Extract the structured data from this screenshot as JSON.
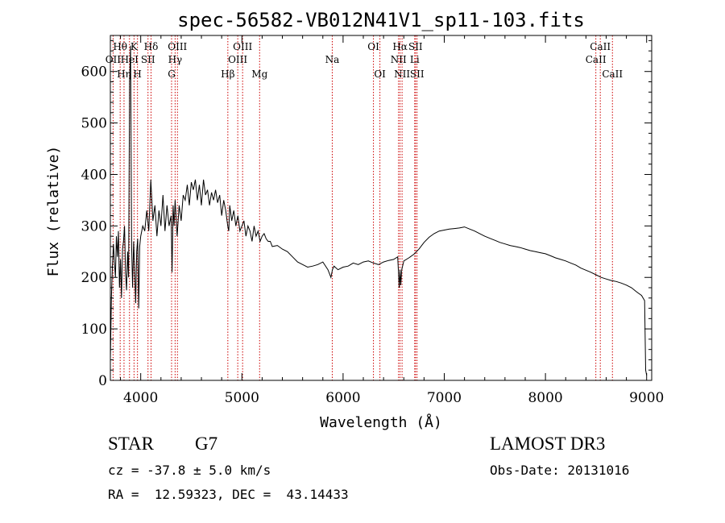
{
  "chart_data": {
    "type": "line",
    "title": "spec-56582-VB012N41V1_sp11-103.fits",
    "xlabel": "Wavelength (Å)",
    "ylabel": "Flux (relative)",
    "xlim": [
      3700,
      9050
    ],
    "ylim": [
      0,
      670
    ],
    "xticks": [
      4000,
      5000,
      6000,
      7000,
      8000,
      9000
    ],
    "yticks": [
      0,
      100,
      200,
      300,
      400,
      500,
      600
    ],
    "grid": false,
    "line_color": "#000000",
    "marker_color": "#cc0000",
    "series": [
      {
        "name": "flux",
        "x": [
          3700,
          3710,
          3720,
          3730,
          3740,
          3750,
          3760,
          3770,
          3780,
          3790,
          3800,
          3810,
          3820,
          3830,
          3840,
          3850,
          3860,
          3870,
          3880,
          3890,
          3900,
          3910,
          3920,
          3930,
          3940,
          3950,
          3960,
          3970,
          3980,
          3990,
          4000,
          4020,
          4040,
          4060,
          4080,
          4100,
          4120,
          4140,
          4160,
          4180,
          4200,
          4220,
          4240,
          4260,
          4280,
          4300,
          4310,
          4320,
          4330,
          4340,
          4360,
          4380,
          4400,
          4420,
          4440,
          4460,
          4480,
          4500,
          4520,
          4540,
          4560,
          4580,
          4600,
          4620,
          4640,
          4660,
          4680,
          4700,
          4720,
          4740,
          4760,
          4780,
          4800,
          4820,
          4840,
          4860,
          4870,
          4880,
          4900,
          4920,
          4940,
          4960,
          4980,
          5000,
          5020,
          5040,
          5060,
          5080,
          5100,
          5120,
          5140,
          5160,
          5180,
          5200,
          5220,
          5240,
          5260,
          5280,
          5300,
          5350,
          5400,
          5450,
          5500,
          5550,
          5600,
          5650,
          5700,
          5750,
          5800,
          5850,
          5880,
          5895,
          5910,
          5950,
          6000,
          6050,
          6100,
          6150,
          6200,
          6250,
          6300,
          6350,
          6400,
          6450,
          6500,
          6540,
          6555,
          6563,
          6570,
          6580,
          6600,
          6650,
          6700,
          6750,
          6800,
          6850,
          6900,
          6950,
          7000,
          7050,
          7100,
          7150,
          7200,
          7250,
          7300,
          7350,
          7400,
          7450,
          7500,
          7550,
          7600,
          7650,
          7700,
          7750,
          7800,
          7850,
          7900,
          7950,
          8000,
          8050,
          8100,
          8150,
          8200,
          8250,
          8300,
          8350,
          8400,
          8450,
          8500,
          8550,
          8600,
          8650,
          8700,
          8750,
          8800,
          8850,
          8900,
          8950,
          8980,
          8990,
          9000
        ],
        "values": [
          40,
          160,
          220,
          265,
          230,
          200,
          280,
          240,
          290,
          180,
          235,
          160,
          255,
          270,
          300,
          210,
          175,
          250,
          200,
          580,
          650,
          260,
          180,
          270,
          220,
          150,
          250,
          275,
          140,
          260,
          280,
          300,
          290,
          330,
          290,
          390,
          310,
          340,
          280,
          330,
          300,
          360,
          290,
          340,
          300,
          320,
          210,
          340,
          300,
          350,
          280,
          340,
          310,
          360,
          350,
          380,
          340,
          385,
          370,
          390,
          350,
          380,
          340,
          390,
          360,
          370,
          340,
          365,
          350,
          370,
          345,
          360,
          320,
          350,
          330,
          300,
          290,
          340,
          310,
          330,
          300,
          320,
          290,
          300,
          310,
          280,
          300,
          290,
          270,
          300,
          280,
          290,
          270,
          280,
          285,
          275,
          270,
          270,
          260,
          262,
          255,
          250,
          240,
          230,
          225,
          220,
          222,
          225,
          230,
          215,
          200,
          215,
          222,
          215,
          220,
          222,
          228,
          225,
          230,
          232,
          228,
          225,
          230,
          233,
          235,
          240,
          180,
          215,
          185,
          215,
          232,
          238,
          245,
          255,
          268,
          278,
          285,
          290,
          292,
          294,
          295,
          296,
          298,
          294,
          290,
          285,
          280,
          276,
          272,
          268,
          265,
          262,
          260,
          258,
          255,
          252,
          250,
          248,
          246,
          242,
          238,
          235,
          232,
          228,
          224,
          218,
          214,
          210,
          205,
          200,
          197,
          194,
          192,
          189,
          185,
          180,
          172,
          165,
          155,
          20,
          10
        ]
      }
    ],
    "line_markers": [
      {
        "name": "H-theta",
        "label": "Hθ",
        "x": 3797,
        "row": 1
      },
      {
        "name": "OII",
        "label": "OII",
        "x": 3727,
        "row": 2
      },
      {
        "name": "H-eta",
        "label": "Hη",
        "x": 3835,
        "row": 3
      },
      {
        "name": "HeI",
        "label": "HeI",
        "x": 3889,
        "row": 2
      },
      {
        "name": "K",
        "label": "K",
        "x": 3934,
        "row": 1
      },
      {
        "name": "H",
        "label": "H",
        "x": 3968,
        "row": 3
      },
      {
        "name": "SII-4072",
        "label": "SII",
        "x": 4072,
        "row": 2
      },
      {
        "name": "H-delta",
        "label": "Hδ",
        "x": 4102,
        "row": 1
      },
      {
        "name": "G",
        "label": "G",
        "x": 4305,
        "row": 3
      },
      {
        "name": "H-gamma",
        "label": "Hγ",
        "x": 4340,
        "row": 2
      },
      {
        "name": "OIII-4363",
        "label": "OIII",
        "x": 4363,
        "row": 1
      },
      {
        "name": "H-beta",
        "label": "Hβ",
        "x": 4861,
        "row": 3
      },
      {
        "name": "OIII-4959",
        "label": "OIII",
        "x": 4959,
        "row": 2
      },
      {
        "name": "OIII-5007",
        "label": "OIII",
        "x": 5007,
        "row": 1
      },
      {
        "name": "Mg",
        "label": "Mg",
        "x": 5175,
        "row": 3
      },
      {
        "name": "Na",
        "label": "Na",
        "x": 5893,
        "row": 2
      },
      {
        "name": "OI-6300",
        "label": "OI",
        "x": 6300,
        "row": 1
      },
      {
        "name": "OI-6364",
        "label": "OI",
        "x": 6364,
        "row": 3
      },
      {
        "name": "NII-6548",
        "label": "NII",
        "x": 6548,
        "row": 2
      },
      {
        "name": "H-alpha",
        "label": "Hα",
        "x": 6563,
        "row": 1
      },
      {
        "name": "NII-6583",
        "label": "NII",
        "x": 6583,
        "row": 3
      },
      {
        "name": "Li",
        "label": "Li",
        "x": 6708,
        "row": 2
      },
      {
        "name": "SII-6716",
        "label": "SII",
        "x": 6716,
        "row": 1
      },
      {
        "name": "SII-6731",
        "label": "SII",
        "x": 6731,
        "row": 3
      },
      {
        "name": "CaII-8498",
        "label": "CaII",
        "x": 8498,
        "row": 2
      },
      {
        "name": "CaII-8542",
        "label": "CaII",
        "x": 8542,
        "row": 1
      },
      {
        "name": "CaII-8662",
        "label": "CaII",
        "x": 8662,
        "row": 3
      }
    ]
  },
  "info": {
    "object_class": "STAR",
    "subclass": "G7",
    "survey": "LAMOST DR3",
    "velocity": "cz = -37.8 ± 5.0 km/s",
    "obs_date": "Obs-Date: 20131016",
    "coords": "RA =  12.59323, DEC =  43.14433"
  }
}
